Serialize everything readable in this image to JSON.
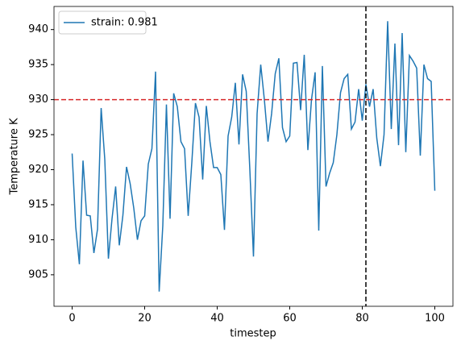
{
  "chart_data": {
    "type": "line",
    "xlabel": "timestep",
    "ylabel": "Temperature K",
    "x": [
      0,
      1,
      2,
      3,
      4,
      5,
      6,
      7,
      8,
      9,
      10,
      11,
      12,
      13,
      14,
      15,
      16,
      17,
      18,
      19,
      20,
      21,
      22,
      23,
      24,
      25,
      26,
      27,
      28,
      29,
      30,
      31,
      32,
      33,
      34,
      35,
      36,
      37,
      38,
      39,
      40,
      41,
      42,
      43,
      44,
      45,
      46,
      47,
      48,
      49,
      50,
      51,
      52,
      53,
      54,
      55,
      56,
      57,
      58,
      59,
      60,
      61,
      62,
      63,
      64,
      65,
      66,
      67,
      68,
      69,
      70,
      71,
      72,
      73,
      74,
      75,
      76,
      77,
      78,
      79,
      80,
      81,
      82,
      83,
      84,
      85,
      86,
      87,
      88,
      89,
      90,
      91,
      92,
      93,
      94,
      95,
      96,
      97,
      98,
      99,
      100
    ],
    "series": [
      {
        "name": "strain: 0.981",
        "color": "#1f77b4",
        "values": [
          922.3,
          911.8,
          906.5,
          921.3,
          913.5,
          913.4,
          908.1,
          911.5,
          928.8,
          921.5,
          907.3,
          913,
          917.6,
          909.2,
          913.5,
          920.4,
          918,
          914.5,
          910,
          912.7,
          913.4,
          920.8,
          923,
          934,
          902.6,
          912,
          929.3,
          913,
          930.9,
          929,
          924,
          923,
          913.4,
          921,
          929.5,
          927.5,
          918.6,
          929.1,
          924,
          920.3,
          920.3,
          919.3,
          911.4,
          924.8,
          927.5,
          932.4,
          923.6,
          933.6,
          931.2,
          920,
          907.6,
          928,
          935,
          930,
          924,
          928,
          933.7,
          935.9,
          926,
          924,
          924.8,
          935.2,
          935.3,
          928.5,
          936.4,
          922.8,
          930,
          933.9,
          911.3,
          934.8,
          917.6,
          919.5,
          921,
          925,
          931,
          933,
          933.6,
          925.8,
          926.8,
          931.5,
          927,
          932.2,
          929,
          931.5,
          924.5,
          920.5,
          925,
          941.2,
          925.8,
          938,
          923.5,
          939.5,
          922.5,
          936.3,
          935.5,
          934.5,
          922,
          935,
          933,
          932.6,
          917
        ]
      }
    ],
    "hline": {
      "value": 930,
      "color": "#d62728"
    },
    "vline": {
      "value": 81,
      "color": "#000000"
    },
    "xlim": [
      -5,
      105
    ],
    "ylim": [
      900.5,
      943.3
    ],
    "xticks": [
      0,
      20,
      40,
      60,
      80,
      100
    ],
    "yticks": [
      905,
      910,
      915,
      920,
      925,
      930,
      935,
      940
    ],
    "legend": "upper left",
    "grid": false
  }
}
